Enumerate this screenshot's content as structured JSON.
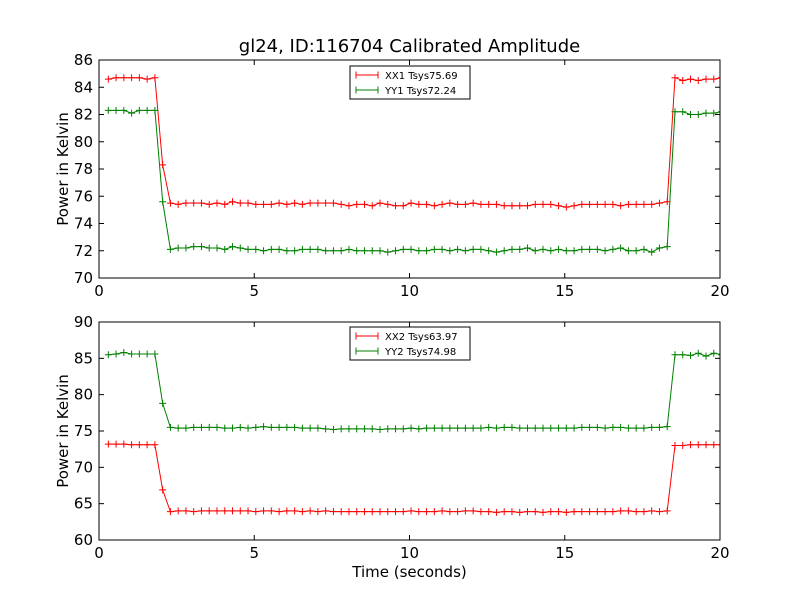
{
  "chart_data": [
    {
      "type": "line",
      "title": "gl24, ID:116704 Calibrated Amplitude",
      "xlabel": "",
      "ylabel": "Power in Kelvin",
      "xlim": [
        0,
        20
      ],
      "ylim": [
        70,
        86
      ],
      "xticks": [
        "0",
        "5",
        "10",
        "15",
        "20"
      ],
      "yticks": [
        "70",
        "72",
        "74",
        "76",
        "78",
        "80",
        "82",
        "84",
        "86"
      ],
      "grid": false,
      "legend_position": "top-center",
      "x": [
        0.3,
        0.55,
        0.8,
        1.05,
        1.3,
        1.55,
        1.8,
        2.05,
        2.3,
        2.55,
        2.8,
        3.05,
        3.3,
        3.55,
        3.8,
        4.05,
        4.3,
        4.55,
        4.8,
        5.05,
        5.3,
        5.55,
        5.8,
        6.05,
        6.3,
        6.55,
        6.8,
        7.05,
        7.3,
        7.55,
        7.8,
        8.05,
        8.3,
        8.55,
        8.8,
        9.05,
        9.3,
        9.55,
        9.8,
        10.05,
        10.3,
        10.55,
        10.8,
        11.05,
        11.3,
        11.55,
        11.8,
        12.05,
        12.3,
        12.55,
        12.8,
        13.05,
        13.3,
        13.55,
        13.8,
        14.05,
        14.3,
        14.55,
        14.8,
        15.05,
        15.3,
        15.55,
        15.8,
        16.05,
        16.3,
        16.55,
        16.8,
        17.05,
        17.3,
        17.55,
        17.8,
        18.05,
        18.3,
        18.55,
        18.8,
        19.05,
        19.3,
        19.55,
        19.8,
        20.05
      ],
      "series": [
        {
          "name": "XX1 Tsys75.69",
          "color": "#ff0000",
          "values": [
            84.6,
            84.7,
            84.7,
            84.7,
            84.7,
            84.6,
            84.7,
            78.3,
            75.5,
            75.4,
            75.5,
            75.5,
            75.5,
            75.4,
            75.5,
            75.4,
            75.6,
            75.5,
            75.5,
            75.4,
            75.4,
            75.4,
            75.5,
            75.4,
            75.5,
            75.4,
            75.5,
            75.5,
            75.5,
            75.5,
            75.4,
            75.3,
            75.4,
            75.4,
            75.3,
            75.5,
            75.4,
            75.3,
            75.3,
            75.5,
            75.4,
            75.4,
            75.3,
            75.4,
            75.5,
            75.4,
            75.4,
            75.5,
            75.4,
            75.4,
            75.4,
            75.3,
            75.3,
            75.3,
            75.3,
            75.4,
            75.4,
            75.4,
            75.3,
            75.2,
            75.3,
            75.4,
            75.4,
            75.4,
            75.4,
            75.4,
            75.3,
            75.4,
            75.4,
            75.4,
            75.4,
            75.5,
            75.6,
            84.7,
            84.5,
            84.6,
            84.5,
            84.6,
            84.6,
            84.7
          ]
        },
        {
          "name": "YY1 Tsys72.24",
          "color": "#008000",
          "values": [
            82.3,
            82.3,
            82.3,
            82.1,
            82.3,
            82.3,
            82.3,
            75.6,
            72.1,
            72.2,
            72.2,
            72.3,
            72.3,
            72.2,
            72.2,
            72.1,
            72.3,
            72.2,
            72.1,
            72.1,
            72.0,
            72.1,
            72.1,
            72.0,
            72.0,
            72.1,
            72.1,
            72.1,
            72.0,
            72.0,
            72.0,
            72.1,
            72.0,
            72.0,
            72.0,
            72.0,
            71.9,
            72.0,
            72.1,
            72.1,
            72.0,
            72.0,
            72.1,
            72.1,
            72.0,
            72.1,
            72.0,
            72.1,
            72.1,
            72.0,
            71.9,
            72.0,
            72.1,
            72.1,
            72.2,
            72.0,
            72.1,
            72.0,
            72.1,
            72.0,
            72.0,
            72.1,
            72.1,
            72.1,
            72.0,
            72.1,
            72.2,
            72.0,
            72.0,
            72.1,
            71.9,
            72.2,
            72.3,
            82.2,
            82.2,
            82.0,
            82.0,
            82.1,
            82.1,
            82.2
          ]
        }
      ]
    },
    {
      "type": "line",
      "title": "",
      "xlabel": "Time (seconds)",
      "ylabel": "Power in Kelvin",
      "xlim": [
        0,
        20
      ],
      "ylim": [
        60,
        90
      ],
      "xticks": [
        "0",
        "5",
        "10",
        "15",
        "20"
      ],
      "yticks": [
        "60",
        "65",
        "70",
        "75",
        "80",
        "85",
        "90"
      ],
      "grid": false,
      "legend_position": "top-center",
      "x": [
        0.3,
        0.55,
        0.8,
        1.05,
        1.3,
        1.55,
        1.8,
        2.05,
        2.3,
        2.55,
        2.8,
        3.05,
        3.3,
        3.55,
        3.8,
        4.05,
        4.3,
        4.55,
        4.8,
        5.05,
        5.3,
        5.55,
        5.8,
        6.05,
        6.3,
        6.55,
        6.8,
        7.05,
        7.3,
        7.55,
        7.8,
        8.05,
        8.3,
        8.55,
        8.8,
        9.05,
        9.3,
        9.55,
        9.8,
        10.05,
        10.3,
        10.55,
        10.8,
        11.05,
        11.3,
        11.55,
        11.8,
        12.05,
        12.3,
        12.55,
        12.8,
        13.05,
        13.3,
        13.55,
        13.8,
        14.05,
        14.3,
        14.55,
        14.8,
        15.05,
        15.3,
        15.55,
        15.8,
        16.05,
        16.3,
        16.55,
        16.8,
        17.05,
        17.3,
        17.55,
        17.8,
        18.05,
        18.3,
        18.55,
        18.8,
        19.05,
        19.3,
        19.55,
        19.8,
        20.05
      ],
      "series": [
        {
          "name": "XX2 Tsys63.97",
          "color": "#ff0000",
          "values": [
            73.2,
            73.2,
            73.2,
            73.1,
            73.1,
            73.1,
            73.1,
            66.9,
            63.9,
            64.0,
            64.0,
            63.9,
            64.0,
            64.0,
            64.0,
            64.0,
            64.0,
            64.0,
            64.0,
            63.9,
            64.0,
            64.0,
            63.9,
            64.0,
            64.0,
            63.9,
            64.0,
            63.9,
            64.0,
            63.9,
            63.9,
            63.9,
            63.9,
            63.9,
            63.9,
            63.9,
            63.9,
            63.9,
            63.9,
            64.0,
            63.9,
            63.9,
            63.9,
            64.0,
            63.9,
            63.9,
            64.0,
            64.0,
            63.9,
            63.9,
            63.8,
            63.9,
            63.9,
            63.8,
            63.9,
            63.9,
            63.8,
            63.9,
            63.9,
            63.8,
            63.9,
            63.9,
            63.9,
            63.9,
            63.9,
            63.9,
            64.0,
            64.0,
            63.9,
            63.9,
            64.0,
            63.9,
            64.0,
            73.0,
            73.0,
            73.1,
            73.1,
            73.1,
            73.1,
            73.1
          ]
        },
        {
          "name": "YY2 Tsys74.98",
          "color": "#008000",
          "values": [
            85.5,
            85.6,
            85.8,
            85.6,
            85.6,
            85.6,
            85.6,
            78.8,
            75.5,
            75.4,
            75.4,
            75.5,
            75.5,
            75.5,
            75.5,
            75.4,
            75.4,
            75.5,
            75.4,
            75.5,
            75.6,
            75.5,
            75.5,
            75.5,
            75.5,
            75.4,
            75.4,
            75.4,
            75.3,
            75.2,
            75.3,
            75.3,
            75.3,
            75.3,
            75.3,
            75.2,
            75.3,
            75.3,
            75.3,
            75.4,
            75.3,
            75.4,
            75.4,
            75.4,
            75.4,
            75.4,
            75.4,
            75.4,
            75.4,
            75.5,
            75.4,
            75.5,
            75.5,
            75.4,
            75.4,
            75.4,
            75.4,
            75.4,
            75.4,
            75.4,
            75.4,
            75.5,
            75.5,
            75.5,
            75.4,
            75.5,
            75.5,
            75.4,
            75.4,
            75.4,
            75.5,
            75.5,
            75.6,
            85.5,
            85.5,
            85.4,
            85.7,
            85.3,
            85.7,
            85.5
          ]
        }
      ]
    }
  ]
}
